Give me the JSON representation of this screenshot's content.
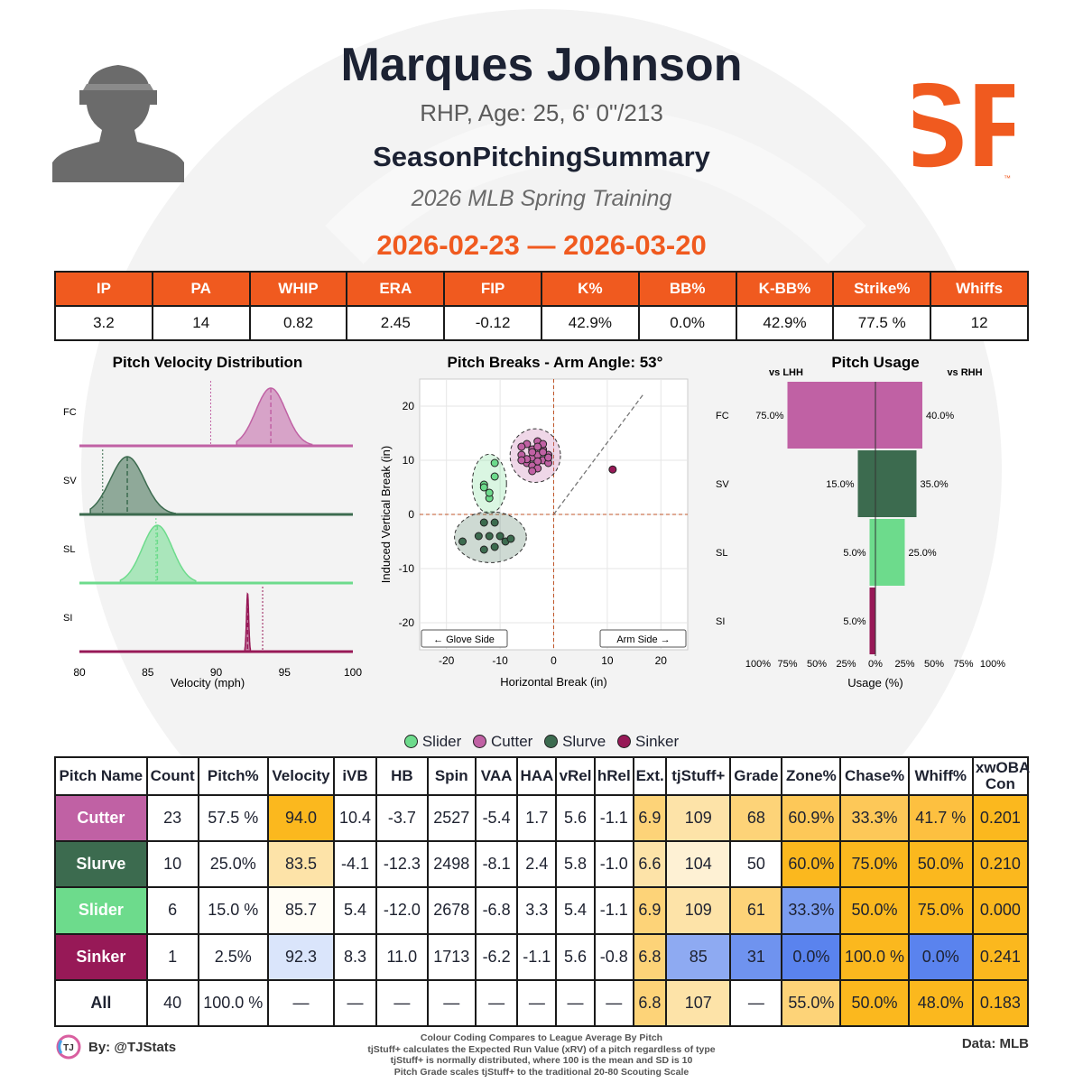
{
  "header": {
    "name": "Marques Johnson",
    "bio": "RHP, Age: 25, 6' 0\"/213",
    "summary_title": "SeasonPitchingSummary",
    "event": "2026 MLB Spring Training",
    "date_range": "2026-02-23 — 2026-03-20",
    "team_logo_text": "SF"
  },
  "stats_table": {
    "headers": [
      "IP",
      "PA",
      "WHIP",
      "ERA",
      "FIP",
      "K%",
      "BB%",
      "K-BB%",
      "Strike%",
      "Whiffs"
    ],
    "values": [
      "3.2",
      "14",
      "0.82",
      "2.45",
      "-0.12",
      "42.9%",
      "0.0%",
      "42.9%",
      "77.5 %",
      "12"
    ]
  },
  "colors": {
    "accent_orange": "#f05a1f",
    "Cutter": "#c061a4",
    "Slurve": "#3c6b4f",
    "Slider": "#6ddb8c",
    "Sinker": "#971957"
  },
  "chart_data": [
    {
      "type": "area",
      "title": "Pitch Velocity Distribution",
      "xlabel": "Velocity (mph)",
      "ylabel": "",
      "xlim": [
        80,
        100
      ],
      "x_ticks": [
        80,
        85,
        90,
        95,
        100
      ],
      "series": [
        {
          "name": "FC",
          "pitch": "Cutter",
          "mean": 94.0,
          "league_avg": 89.6,
          "min": 91.5,
          "max": 97.0
        },
        {
          "name": "SV",
          "pitch": "Slurve",
          "mean": 83.5,
          "league_avg": 81.7,
          "min": 80.8,
          "max": 87.0
        },
        {
          "name": "SL",
          "pitch": "Slider",
          "mean": 85.7,
          "league_avg": 85.6,
          "min": 83.0,
          "max": 88.5
        },
        {
          "name": "SI",
          "pitch": "Sinker",
          "mean": 92.3,
          "league_avg": 93.4,
          "min": 92.1,
          "max": 92.5
        }
      ]
    },
    {
      "type": "scatter",
      "title": "Pitch Breaks - Arm Angle: 53°",
      "xlabel": "Horizontal Break (in)",
      "ylabel": "Induced Vertical Break (in)",
      "xlim": [
        -25,
        25
      ],
      "ylim": [
        -25,
        25
      ],
      "x_ticks": [
        -20,
        -10,
        0,
        10,
        20
      ],
      "y_ticks": [
        -20,
        -10,
        0,
        10,
        20
      ],
      "arm_angle_deg": 53,
      "annotations": [
        "← Glove Side",
        "Arm Side →"
      ],
      "series": [
        {
          "name": "Cutter",
          "points": [
            [
              -5,
              13
            ],
            [
              -4,
              12
            ],
            [
              -3,
              13.5
            ],
            [
              -2,
              12
            ],
            [
              -6,
              11
            ],
            [
              -4,
              10.5
            ],
            [
              -3,
              11
            ],
            [
              -1,
              11
            ],
            [
              -5,
              9.5
            ],
            [
              -2,
              10
            ],
            [
              -4,
              9
            ],
            [
              -3,
              8.5
            ],
            [
              -6,
              12.5
            ],
            [
              -2,
              13
            ],
            [
              -4,
              11.5
            ],
            [
              -3,
              9.8
            ],
            [
              -5,
              10.2
            ],
            [
              -1,
              9.5
            ],
            [
              -6,
              10
            ],
            [
              -2,
              11.5
            ],
            [
              -3,
              12.5
            ],
            [
              -4,
              8
            ],
            [
              -1,
              10.5
            ]
          ]
        },
        {
          "name": "Slurve",
          "points": [
            [
              -13,
              -1.5
            ],
            [
              -11,
              -1.5
            ],
            [
              -17,
              -5
            ],
            [
              -14,
              -4
            ],
            [
              -12,
              -4
            ],
            [
              -11,
              -6
            ],
            [
              -9,
              -5
            ],
            [
              -10,
              -4
            ],
            [
              -13,
              -6.5
            ],
            [
              -8,
              -4.5
            ]
          ]
        },
        {
          "name": "Slider",
          "points": [
            [
              -11,
              9.5
            ],
            [
              -13,
              5.5
            ],
            [
              -12,
              3
            ],
            [
              -13,
              5
            ],
            [
              -11,
              7
            ],
            [
              -12,
              4
            ]
          ]
        },
        {
          "name": "Sinker",
          "points": [
            [
              11,
              8.3
            ]
          ]
        }
      ]
    },
    {
      "type": "bar",
      "title": "Pitch Usage",
      "xlabel": "Usage (%)",
      "ylabel": "",
      "categories": [
        "FC",
        "SV",
        "SL",
        "SI"
      ],
      "x_ticks": [
        "100%",
        "75%",
        "50%",
        "25%",
        "0%",
        "25%",
        "50%",
        "75%",
        "100%"
      ],
      "series": [
        {
          "name": "vs LHH",
          "values": [
            75.0,
            15.0,
            5.0,
            5.0
          ]
        },
        {
          "name": "vs RHH",
          "values": [
            40.0,
            35.0,
            25.0,
            0.0
          ]
        }
      ],
      "bar_labels": {
        "lhh": [
          "75.0%",
          "15.0%",
          "5.0%",
          "5.0%"
        ],
        "rhh": [
          "40.0%",
          "35.0%",
          "25.0%",
          ""
        ]
      }
    }
  ],
  "legend": [
    {
      "name": "Slider",
      "color": "#6ddb8c"
    },
    {
      "name": "Cutter",
      "color": "#c061a4"
    },
    {
      "name": "Slurve",
      "color": "#3c6b4f"
    },
    {
      "name": "Sinker",
      "color": "#971957"
    }
  ],
  "pitch_table": {
    "headers": [
      "Pitch Name",
      "Count",
      "Pitch%",
      "Velocity",
      "iVB",
      "HB",
      "Spin",
      "VAA",
      "HAA",
      "vRel",
      "hRel",
      "Ext.",
      "tjStuff+",
      "Grade",
      "Zone%",
      "Chase%",
      "Whiff%",
      "xwOBA Con"
    ],
    "rows": [
      {
        "cells": [
          "Cutter",
          "23",
          "57.5 %",
          "94.0",
          "10.4",
          "-3.7",
          "2527",
          "-5.4",
          "1.7",
          "5.6",
          "-1.1",
          "6.9",
          "109",
          "68",
          "60.9%",
          "33.3%",
          "41.7 %",
          "0.201"
        ],
        "bg": [
          "#c061a4",
          "#ffffff",
          "#ffffff",
          "#fbb81e",
          "#ffffff",
          "#ffffff",
          "#ffffff",
          "#ffffff",
          "#ffffff",
          "#ffffff",
          "#ffffff",
          "#fdd378",
          "#fde3a8",
          "#fdd378",
          "#fdc858",
          "#fdc858",
          "#fdc040",
          "#fbb81e"
        ]
      },
      {
        "cells": [
          "Slurve",
          "10",
          "25.0%",
          "83.5",
          "-4.1",
          "-12.3",
          "2498",
          "-8.1",
          "2.4",
          "5.8",
          "-1.0",
          "6.6",
          "104",
          "50",
          "60.0%",
          "75.0%",
          "50.0%",
          "0.210"
        ],
        "bg": [
          "#3c6b4f",
          "#ffffff",
          "#ffffff",
          "#fde3a8",
          "#ffffff",
          "#ffffff",
          "#ffffff",
          "#ffffff",
          "#ffffff",
          "#ffffff",
          "#ffffff",
          "#fde3a8",
          "#fef1d4",
          "#ffffff",
          "#fbb81e",
          "#fbb81e",
          "#fbb81e",
          "#fbb81e"
        ]
      },
      {
        "cells": [
          "Slider",
          "6",
          "15.0 %",
          "85.7",
          "5.4",
          "-12.0",
          "2678",
          "-6.8",
          "3.3",
          "5.4",
          "-1.1",
          "6.9",
          "109",
          "61",
          "33.3%",
          "50.0%",
          "75.0%",
          "0.000"
        ],
        "bg": [
          "#6ddb8c",
          "#ffffff",
          "#ffffff",
          "#fffdf6",
          "#ffffff",
          "#ffffff",
          "#ffffff",
          "#ffffff",
          "#ffffff",
          "#ffffff",
          "#ffffff",
          "#fdd378",
          "#fde3a8",
          "#fdd378",
          "#7b9df0",
          "#fbb81e",
          "#fbb81e",
          "#fbb81e"
        ]
      },
      {
        "cells": [
          "Sinker",
          "1",
          "2.5%",
          "92.3",
          "8.3",
          "11.0",
          "1713",
          "-6.2",
          "-1.1",
          "5.6",
          "-0.8",
          "6.8",
          "85",
          "31",
          "0.0%",
          "100.0 %",
          "0.0%",
          "0.241"
        ],
        "bg": [
          "#971957",
          "#ffffff",
          "#ffffff",
          "#dae5fb",
          "#ffffff",
          "#ffffff",
          "#ffffff",
          "#ffffff",
          "#ffffff",
          "#ffffff",
          "#ffffff",
          "#fdd378",
          "#8eaaf2",
          "#6f93ef",
          "#5a83ee",
          "#fbb81e",
          "#5a83ee",
          "#fbb81e"
        ]
      },
      {
        "cells": [
          "All",
          "40",
          "100.0 %",
          "—",
          "—",
          "—",
          "—",
          "—",
          "—",
          "—",
          "—",
          "6.8",
          "107",
          "—",
          "55.0%",
          "50.0%",
          "48.0%",
          "0.183"
        ],
        "bg": [
          "#ffffff",
          "#ffffff",
          "#ffffff",
          "#ffffff",
          "#ffffff",
          "#ffffff",
          "#ffffff",
          "#ffffff",
          "#ffffff",
          "#ffffff",
          "#ffffff",
          "#fdd378",
          "#fde3a8",
          "#ffffff",
          "#fdd378",
          "#fbb81e",
          "#fbb81e",
          "#fbb81e"
        ]
      }
    ]
  },
  "footer": {
    "by": "By: @TJStats",
    "notes": [
      "Colour Coding Compares to League Average By Pitch",
      "tjStuff+ calculates the Expected Run Value (xRV) of a pitch regardless of type",
      "tjStuff+ is normally distributed, where 100 is the mean and SD is 10",
      "Pitch Grade scales tjStuff+ to the traditional 20-80 Scouting Scale"
    ],
    "data_source": "Data: MLB"
  }
}
